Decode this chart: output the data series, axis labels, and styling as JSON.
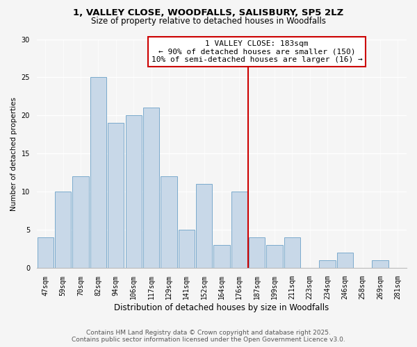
{
  "title1": "1, VALLEY CLOSE, WOODFALLS, SALISBURY, SP5 2LZ",
  "title2": "Size of property relative to detached houses in Woodfalls",
  "xlabel": "Distribution of detached houses by size in Woodfalls",
  "ylabel": "Number of detached properties",
  "bar_labels": [
    "47sqm",
    "59sqm",
    "70sqm",
    "82sqm",
    "94sqm",
    "106sqm",
    "117sqm",
    "129sqm",
    "141sqm",
    "152sqm",
    "164sqm",
    "176sqm",
    "187sqm",
    "199sqm",
    "211sqm",
    "223sqm",
    "234sqm",
    "246sqm",
    "258sqm",
    "269sqm",
    "281sqm"
  ],
  "bar_heights": [
    4,
    10,
    12,
    25,
    19,
    20,
    21,
    12,
    5,
    11,
    3,
    10,
    4,
    3,
    4,
    0,
    1,
    2,
    0,
    1,
    0
  ],
  "bar_color": "#c8d8e8",
  "bar_edgecolor": "#7aaacc",
  "vline_color": "#cc0000",
  "annotation_title": "1 VALLEY CLOSE: 183sqm",
  "annotation_line1": "← 90% of detached houses are smaller (150)",
  "annotation_line2": "10% of semi-detached houses are larger (16) →",
  "annotation_box_facecolor": "#ffffff",
  "annotation_box_edgecolor": "#cc0000",
  "ylim": [
    0,
    30
  ],
  "yticks": [
    0,
    5,
    10,
    15,
    20,
    25,
    30
  ],
  "footer1": "Contains HM Land Registry data © Crown copyright and database right 2025.",
  "footer2": "Contains public sector information licensed under the Open Government Licence v3.0.",
  "bg_color": "#f5f5f5",
  "grid_color": "#ffffff",
  "title1_fontsize": 9.5,
  "title2_fontsize": 8.5,
  "xlabel_fontsize": 8.5,
  "ylabel_fontsize": 7.5,
  "tick_fontsize": 7,
  "footer_fontsize": 6.5,
  "annot_fontsize": 8
}
